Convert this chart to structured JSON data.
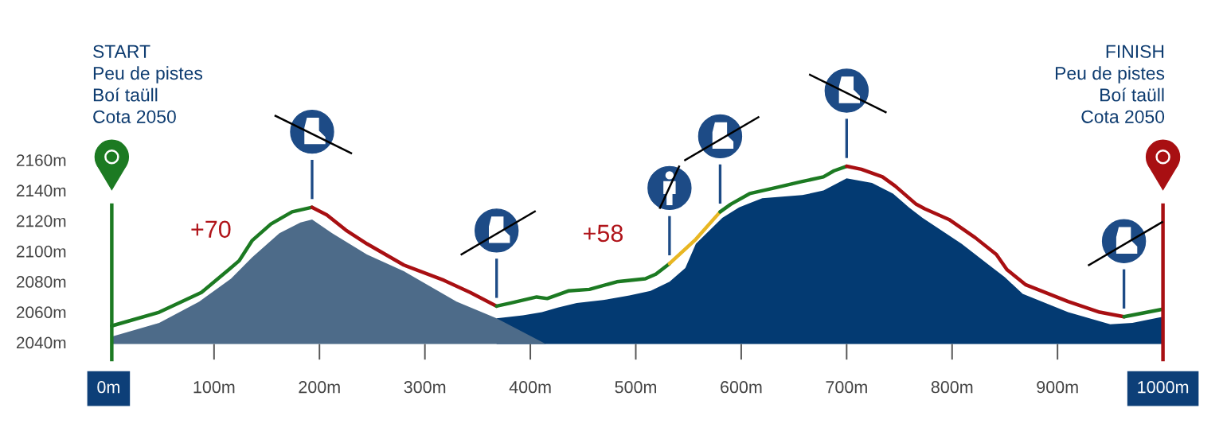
{
  "chart_data": {
    "type": "line",
    "series": [
      {
        "type": "area",
        "color": "#033a72",
        "x": [
          368,
          393,
          411,
          426,
          444,
          469,
          494,
          514,
          532,
          547,
          557,
          582,
          598,
          620,
          658,
          678,
          700,
          724,
          744,
          759,
          772,
          809,
          835,
          850,
          867,
          910,
          950,
          971,
          1000
        ],
        "values": [
          2057,
          2059,
          2061,
          2064,
          2067,
          2069,
          2072,
          2075,
          2081,
          2090,
          2106,
          2123,
          2130,
          2136,
          2138,
          2141,
          2149,
          2146,
          2139,
          2130,
          2123,
          2106,
          2092,
          2084,
          2073,
          2061,
          2053,
          2054,
          2058
        ]
      },
      {
        "type": "area",
        "color": "#4d6b89",
        "x": [
          3,
          48,
          86,
          116,
          136,
          162,
          182,
          193,
          212,
          245,
          280,
          330,
          368,
          415
        ],
        "values": [
          2045,
          2054,
          2068,
          2083,
          2097,
          2113,
          2120,
          2122,
          2113,
          2099,
          2088,
          2068,
          2057,
          2040
        ]
      },
      {
        "color": "#1c7a22",
        "x": [
          3,
          48,
          88,
          114,
          124,
          136,
          154,
          174,
          193
        ],
        "values": [
          2052,
          2061,
          2074,
          2089,
          2095,
          2108,
          2119,
          2127,
          2130
        ]
      },
      {
        "color": "#a80f12",
        "x": [
          193,
          207,
          225,
          245,
          280,
          318,
          343,
          368
        ],
        "values": [
          2130,
          2125,
          2115,
          2106,
          2092,
          2082,
          2074,
          2065
        ]
      },
      {
        "color": "#1c7a22",
        "x": [
          368,
          381,
          406,
          416,
          436,
          456,
          482,
          509,
          519,
          532
        ],
        "values": [
          2065,
          2067,
          2071,
          2070,
          2075,
          2076,
          2081,
          2083,
          2086,
          2093
        ]
      },
      {
        "color": "#e8b622",
        "x": [
          532,
          557,
          580
        ],
        "values": [
          2093,
          2109,
          2127
        ]
      },
      {
        "color": "#1c7a22",
        "x": [
          580,
          590,
          608,
          633,
          658,
          678,
          688,
          700
        ],
        "values": [
          2127,
          2132,
          2139,
          2143,
          2147,
          2150,
          2154,
          2157
        ]
      },
      {
        "color": "#a80f12",
        "x": [
          700,
          714,
          734,
          746,
          766,
          774,
          797,
          822,
          842,
          852,
          870,
          910,
          940,
          963
        ],
        "values": [
          2157,
          2155,
          2150,
          2144,
          2132,
          2129,
          2122,
          2110,
          2099,
          2089,
          2079,
          2068,
          2061,
          2058
        ]
      },
      {
        "color": "#1c7a22",
        "x": [
          963,
          1000
        ],
        "values": [
          2058,
          2063
        ]
      }
    ],
    "xlim": [
      0,
      1000
    ],
    "ylim": [
      2040,
      2160
    ],
    "xticks": [
      {
        "value": 0,
        "label": "0m"
      },
      {
        "value": 100,
        "label": "100m"
      },
      {
        "value": 200,
        "label": "200m"
      },
      {
        "value": 300,
        "label": "300m"
      },
      {
        "value": 400,
        "label": "400m"
      },
      {
        "value": 500,
        "label": "500m"
      },
      {
        "value": 600,
        "label": "600m"
      },
      {
        "value": 700,
        "label": "700m"
      },
      {
        "value": 800,
        "label": "800m"
      },
      {
        "value": 900,
        "label": "900m"
      },
      {
        "value": 1000,
        "label": "1000m"
      }
    ],
    "yticks": [
      {
        "value": 2040,
        "label": "2040m"
      },
      {
        "value": 2060,
        "label": "2060m"
      },
      {
        "value": 2080,
        "label": "2080m"
      },
      {
        "value": 2100,
        "label": "2100m"
      },
      {
        "value": 2120,
        "label": "2120m"
      },
      {
        "value": 2140,
        "label": "2140m"
      },
      {
        "value": 2160,
        "label": "2160m"
      }
    ],
    "ref_lines": [
      {
        "axis": "x",
        "value": 3,
        "color": "#1c7a22"
      },
      {
        "axis": "x",
        "value": 1000,
        "color": "#a80f12"
      }
    ],
    "annotations": [
      "START\nPeu de pistes\nBoí taüll\nCota 2050",
      "FINISH\nPeu de pistes\nBoí taüll\nCota 2050",
      "+70",
      "+58"
    ]
  }
}
